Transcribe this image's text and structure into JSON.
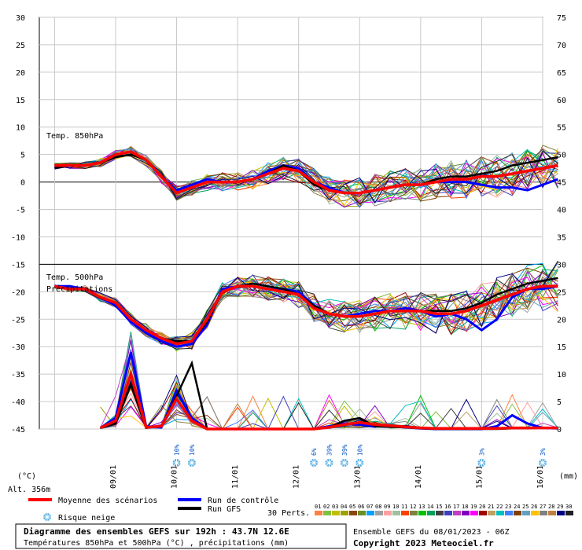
{
  "chart_data": {
    "type": "line",
    "title": "Diagramme des ensembles GEFS sur 192h : 43.7N 12.6E",
    "subtitle": "Températures 850hPa et 500hPa (°C) , précipitations (mm)",
    "run_info": "Ensemble GEFS du 08/01/2023 - 06Z",
    "copyright": "Copyright 2023 Meteociel.fr",
    "altitude": "Alt. 356m",
    "left_axis": {
      "unit": "(°C)",
      "range": [
        -45,
        30
      ],
      "ticks": [
        "30",
        "25",
        "20",
        "15",
        "10",
        "5",
        "0",
        "-5",
        "-10",
        "-15",
        "-20",
        "-25",
        "-30",
        "-35",
        "-40",
        "-45"
      ]
    },
    "right_axis": {
      "unit": "(mm)",
      "range": [
        0,
        75
      ],
      "ticks": [
        "75",
        "70",
        "65",
        "60",
        "55",
        "50",
        "45",
        "40",
        "35",
        "30",
        "25",
        "20",
        "15",
        "10",
        "5",
        "0"
      ]
    },
    "x_ticks": [
      "09/01",
      "10/01",
      "11/01",
      "12/01",
      "13/01",
      "14/01",
      "15/01",
      "16/01"
    ],
    "panel_labels": {
      "t850": "Temp. 850hPa",
      "t500": "Temp. 500hPa",
      "precip": "Précipitations"
    },
    "snow_risk": [
      {
        "hour": 48,
        "pct": "10%"
      },
      {
        "hour": 54,
        "pct": "10%"
      },
      {
        "hour": 102,
        "pct": "6%"
      },
      {
        "hour": 108,
        "pct": "39%"
      },
      {
        "hour": 114,
        "pct": "39%"
      },
      {
        "hour": 120,
        "pct": "10%"
      },
      {
        "hour": 168,
        "pct": "3%"
      },
      {
        "hour": 192,
        "pct": "3%"
      }
    ],
    "series": [
      {
        "name": "Moyenne des scénarios",
        "color": "#ff0000",
        "t850": [
          3,
          3,
          3,
          3.5,
          5,
          5.5,
          4,
          1,
          -2,
          -1,
          0,
          0,
          0,
          0.5,
          1.5,
          2.5,
          2,
          0,
          -1.5,
          -2,
          -2,
          -1.5,
          -1,
          -0.5,
          -0.5,
          0,
          0.5,
          0.5,
          1,
          1,
          1.5,
          2,
          2.5,
          3
        ],
        "t500": [
          -19,
          -19.5,
          -19.5,
          -21,
          -22,
          -25,
          -27,
          -28.5,
          -29.5,
          -29,
          -25,
          -20,
          -19,
          -19,
          -19.5,
          -20,
          -20.5,
          -23,
          -24,
          -24.5,
          -24.5,
          -24,
          -23.5,
          -23.5,
          -23.5,
          -24,
          -24,
          -23.5,
          -22.5,
          -21.5,
          -20.5,
          -19.5,
          -19,
          -19
        ],
        "precip": [
          null,
          null,
          null,
          0.2,
          1.5,
          10,
          0.3,
          0.5,
          5.5,
          1.5,
          0,
          0,
          0,
          0,
          0,
          0,
          0,
          0,
          0.3,
          0.8,
          1.2,
          0.8,
          0.6,
          0.4,
          0.2,
          0.1,
          0.1,
          0.1,
          0.1,
          0.1,
          0.2,
          0.2,
          0.2,
          0.2
        ]
      },
      {
        "name": "Run de contrôle",
        "color": "#0000ff",
        "t850": [
          2.5,
          3,
          3,
          3.5,
          5,
          5.5,
          4,
          1,
          -1.5,
          -0.5,
          0.5,
          0,
          0,
          0.5,
          2,
          3,
          2.5,
          0,
          -1,
          -2,
          -2,
          -1.5,
          -1,
          -0.5,
          -0.5,
          0,
          0,
          0,
          -0.5,
          -1,
          -1,
          -1.5,
          -0.5,
          0.5
        ],
        "t500": [
          -19,
          -19,
          -19.5,
          -21,
          -22.5,
          -25.5,
          -27.5,
          -29,
          -30,
          -29.5,
          -26,
          -19.5,
          -19,
          -19,
          -19.5,
          -19.5,
          -20,
          -22.5,
          -24,
          -24.5,
          -24,
          -23.5,
          -23.5,
          -23,
          -23.5,
          -24.5,
          -24,
          -25,
          -27,
          -25,
          -21,
          -19.5,
          -19.5,
          -19
        ],
        "precip": [
          null,
          null,
          null,
          0.2,
          2,
          14,
          0.5,
          0.3,
          7,
          2,
          0,
          0,
          0,
          0,
          0,
          0,
          0,
          0,
          0.5,
          1,
          0.8,
          0.5,
          0.5,
          0.3,
          0.1,
          0,
          0,
          0,
          0,
          0.5,
          2.5,
          1,
          0.2,
          0.1
        ]
      },
      {
        "name": "Run GFS",
        "color": "#000000",
        "t850": [
          2.5,
          3,
          3,
          3.5,
          4.5,
          5,
          4,
          1,
          -2,
          -1,
          0,
          0,
          0,
          0.5,
          1.5,
          3,
          2,
          -0.5,
          -1.5,
          -2,
          -2,
          -1.5,
          -1,
          -0.5,
          -0.5,
          0.5,
          1,
          1,
          1.5,
          2,
          3,
          3.5,
          4,
          4.5
        ],
        "t500": [
          -19,
          -19.5,
          -19.5,
          -21,
          -22,
          -25,
          -27,
          -28.5,
          -29,
          -29,
          -25.5,
          -20,
          -19,
          -18.5,
          -19,
          -19.5,
          -20.5,
          -22.5,
          -24,
          -24.5,
          -24.5,
          -24,
          -23.5,
          -23.5,
          -23.5,
          -23.5,
          -23.5,
          -23,
          -22,
          -20.5,
          -19.5,
          -18.5,
          -18,
          -17.5
        ],
        "precip": [
          null,
          null,
          null,
          0.2,
          1,
          8,
          0.2,
          0.5,
          6,
          12,
          0,
          0,
          0,
          0,
          0,
          0,
          0,
          0,
          0.3,
          1.5,
          2,
          0.5,
          0.4,
          0.3,
          0.1,
          0,
          0,
          0,
          0,
          0,
          0.1,
          0.1,
          0.2,
          0.2
        ]
      }
    ],
    "perturbations": {
      "label": "30 Perts.",
      "ids": [
        "01",
        "02",
        "03",
        "04",
        "05",
        "06",
        "07",
        "08",
        "09",
        "10",
        "11",
        "12",
        "13",
        "14",
        "15",
        "16",
        "17",
        "18",
        "19",
        "20",
        "21",
        "22",
        "23",
        "24",
        "25",
        "26",
        "27",
        "28",
        "29",
        "30"
      ],
      "colors": [
        "#ff8040",
        "#80c040",
        "#c0c000",
        "#a0a000",
        "#8b4513",
        "#6b8e23",
        "#00a0ff",
        "#a0a0a0",
        "#ffa0a0",
        "#a0c0a0",
        "#ff4000",
        "#808040",
        "#00c000",
        "#00a060",
        "#404040",
        "#4040c0",
        "#c040c0",
        "#8000c0",
        "#ff00ff",
        "#a00000",
        "#c0a060",
        "#00c0c0",
        "#4080ff",
        "#804000",
        "#60a0c0",
        "#ffc000",
        "#808080",
        "#c08040",
        "#000080",
        "#202020"
      ]
    },
    "legend": {
      "mean": "Moyenne des scénarios",
      "control": "Run de contrôle",
      "gfs": "Run GFS",
      "snow": "Risque neige"
    },
    "grid": true
  }
}
